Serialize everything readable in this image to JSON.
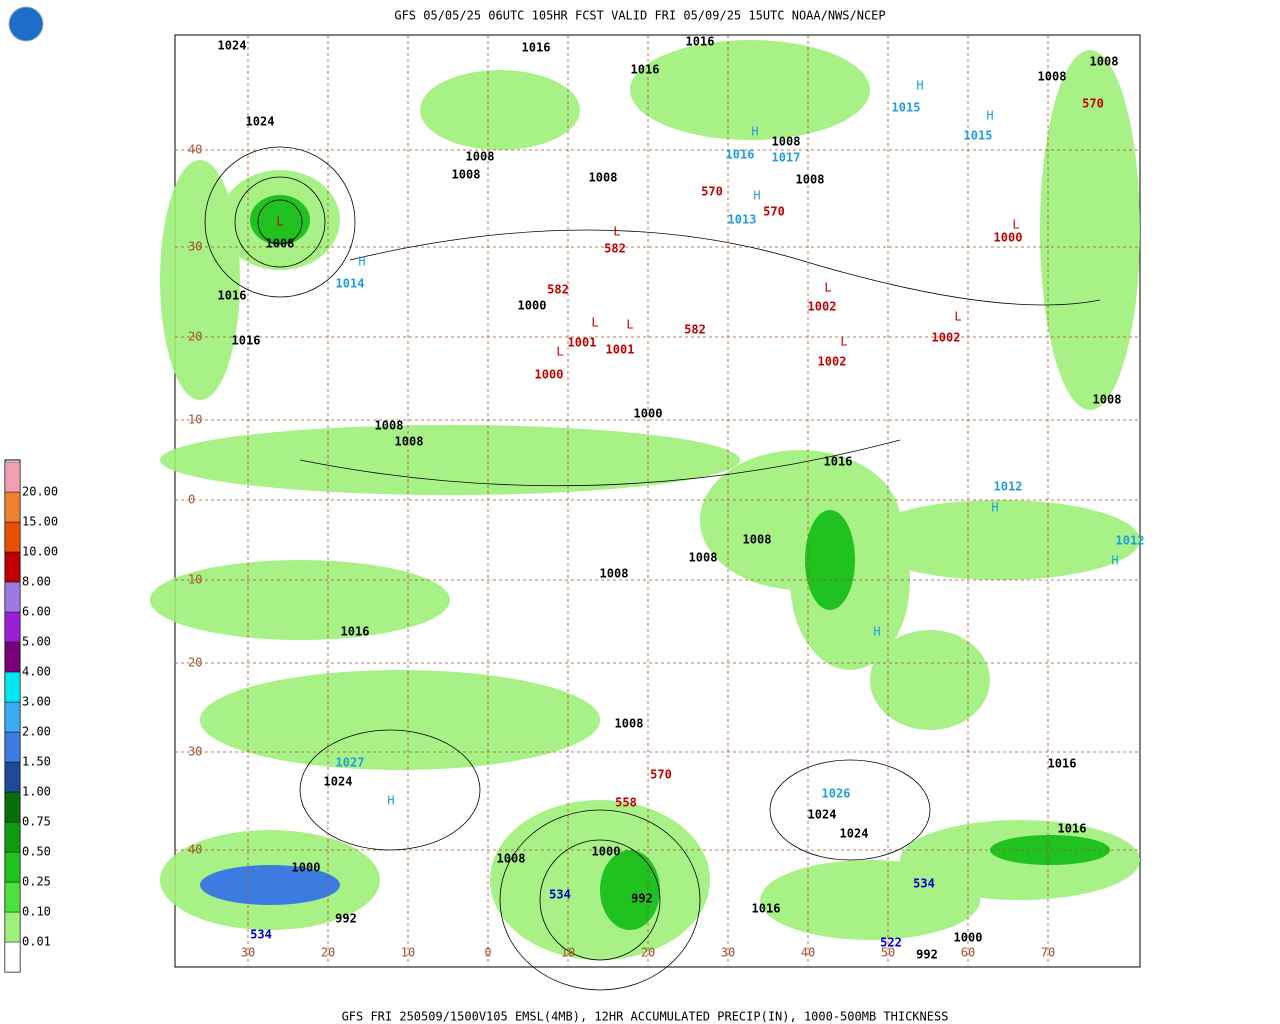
{
  "header": {
    "title": "GFS 05/05/25 06UTC 105HR FCST VALID FRI 05/09/25 15UTC NOAA/NWS/NCEP"
  },
  "footer": {
    "caption": "GFS FRI 250509/1500V105 EMSL(4MB), 12HR ACCUMULATED PRECIP(IN), 1000-500MB THICKNESS"
  },
  "legend": {
    "labels": [
      "0.01",
      "0.10",
      "0.25",
      "0.50",
      "0.75",
      "1.00",
      "1.50",
      "2.00",
      "3.00",
      "4.00",
      "5.00",
      "6.00",
      "8.00",
      "10.00",
      "15.00",
      "20.00"
    ],
    "colors": [
      "#ffffff",
      "#9ef07a",
      "#4ce040",
      "#1fc21f",
      "#0f9a0f",
      "#0a6e0a",
      "#1e4a96",
      "#3c7ce0",
      "#3caaf0",
      "#00e8f0",
      "#780078",
      "#9a20d8",
      "#9e7ae0",
      "#c00000",
      "#e85000",
      "#f08030",
      "#f0a0b0"
    ]
  },
  "lat_labels": [
    "40",
    "30",
    "20",
    "10",
    "0",
    "10",
    "20",
    "30",
    "40"
  ],
  "lon_labels": [
    "30",
    "20",
    "10",
    "0",
    "10",
    "20",
    "30",
    "40",
    "50",
    "60",
    "70"
  ],
  "labels": [
    {
      "text": "1024",
      "color": "#000"
    },
    {
      "text": "1024",
      "color": "#000"
    },
    {
      "text": "L",
      "color": "#c00000"
    },
    {
      "text": "1008",
      "color": "#000"
    },
    {
      "text": "H",
      "color": "#1e9ee0"
    },
    {
      "text": "1014",
      "color": "#1e9ee0"
    },
    {
      "text": "1016",
      "color": "#000"
    },
    {
      "text": "1016",
      "color": "#000"
    },
    {
      "text": "1016",
      "color": "#000"
    },
    {
      "text": "1016",
      "color": "#000"
    },
    {
      "text": "1016",
      "color": "#000"
    },
    {
      "text": "1008",
      "color": "#000"
    },
    {
      "text": "1008",
      "color": "#000"
    },
    {
      "text": "1008",
      "color": "#000"
    },
    {
      "text": "H",
      "color": "#1e9ee0"
    },
    {
      "text": "1016",
      "color": "#1e9ee0"
    },
    {
      "text": "1017",
      "color": "#1e9ee0"
    },
    {
      "text": "1008",
      "color": "#000"
    },
    {
      "text": "1008",
      "color": "#000"
    },
    {
      "text": "570",
      "color": "#c00000"
    },
    {
      "text": "570",
      "color": "#c00000"
    },
    {
      "text": "H",
      "color": "#1e9ee0"
    },
    {
      "text": "1013",
      "color": "#1e9ee0"
    },
    {
      "text": "H",
      "color": "#1e9ee0"
    },
    {
      "text": "1015",
      "color": "#1e9ee0"
    },
    {
      "text": "H",
      "color": "#1e9ee0"
    },
    {
      "text": "1015",
      "color": "#1e9ee0"
    },
    {
      "text": "1008",
      "color": "#000"
    },
    {
      "text": "1008",
      "color": "#000"
    },
    {
      "text": "570",
      "color": "#c00000"
    },
    {
      "text": "L",
      "color": "#c00000"
    },
    {
      "text": "582",
      "color": "#c00000"
    },
    {
      "text": "L",
      "color": "#c00000"
    },
    {
      "text": "1001",
      "color": "#c00000"
    },
    {
      "text": "L",
      "color": "#c00000"
    },
    {
      "text": "1001",
      "color": "#c00000"
    },
    {
      "text": "L",
      "color": "#c00000"
    },
    {
      "text": "1000",
      "color": "#c00000"
    },
    {
      "text": "582",
      "color": "#c00000"
    },
    {
      "text": "582",
      "color": "#c00000"
    },
    {
      "text": "L",
      "color": "#c00000"
    },
    {
      "text": "1002",
      "color": "#c00000"
    },
    {
      "text": "L",
      "color": "#c00000"
    },
    {
      "text": "1002",
      "color": "#c00000"
    },
    {
      "text": "L",
      "color": "#c00000"
    },
    {
      "text": "1002",
      "color": "#c00000"
    },
    {
      "text": "L",
      "color": "#c00000"
    },
    {
      "text": "1000",
      "color": "#c00000"
    },
    {
      "text": "1000",
      "color": "#000"
    },
    {
      "text": "1000",
      "color": "#000"
    },
    {
      "text": "1008",
      "color": "#000"
    },
    {
      "text": "1008",
      "color": "#000"
    },
    {
      "text": "1008",
      "color": "#000"
    },
    {
      "text": "1016",
      "color": "#000"
    },
    {
      "text": "1016",
      "color": "#000"
    },
    {
      "text": "H",
      "color": "#1e9ee0"
    },
    {
      "text": "1012",
      "color": "#1e9ee0"
    },
    {
      "text": "H",
      "color": "#1e9ee0"
    },
    {
      "text": "1012",
      "color": "#1e9ee0"
    },
    {
      "text": "H",
      "color": "#1e9ee0"
    },
    {
      "text": "1027",
      "color": "#1e9ee0"
    },
    {
      "text": "1024",
      "color": "#000"
    },
    {
      "text": "H",
      "color": "#1e9ee0"
    },
    {
      "text": "1026",
      "color": "#1e9ee0"
    },
    {
      "text": "1024",
      "color": "#000"
    },
    {
      "text": "1024",
      "color": "#000"
    },
    {
      "text": "1016",
      "color": "#000"
    },
    {
      "text": "1016",
      "color": "#000"
    },
    {
      "text": "570",
      "color": "#c00000"
    },
    {
      "text": "558",
      "color": "#c00000"
    },
    {
      "text": "1000",
      "color": "#000"
    },
    {
      "text": "992",
      "color": "#000"
    },
    {
      "text": "534",
      "color": "#0000c8"
    },
    {
      "text": "1000",
      "color": "#000"
    },
    {
      "text": "992",
      "color": "#000"
    },
    {
      "text": "534",
      "color": "#0000c8"
    },
    {
      "text": "534",
      "color": "#0000c8"
    },
    {
      "text": "522",
      "color": "#0000c8"
    },
    {
      "text": "1008",
      "color": "#000"
    },
    {
      "text": "1016",
      "color": "#000"
    },
    {
      "text": "1000",
      "color": "#000"
    },
    {
      "text": "992",
      "color": "#000"
    },
    {
      "text": "1008",
      "color": "#000"
    },
    {
      "text": "1008",
      "color": "#000"
    },
    {
      "text": "1008",
      "color": "#000"
    },
    {
      "text": "1008",
      "color": "#000"
    }
  ]
}
